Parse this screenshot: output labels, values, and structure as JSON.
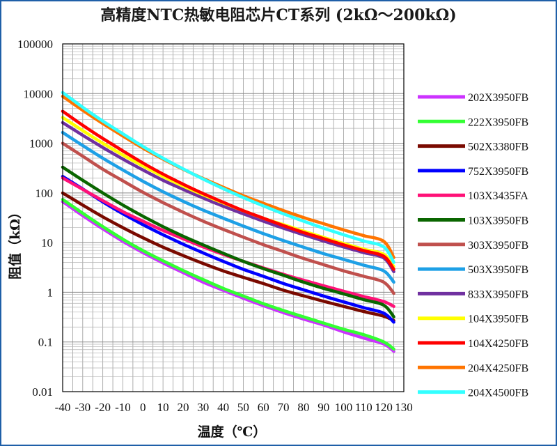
{
  "chart_data": {
    "type": "line",
    "title": "高精度NTC热敏电阻芯片CT系列 (2kΩ～200kΩ)",
    "xlabel": "温度（℃）",
    "ylabel": "阻值（kΩ）",
    "xlim": [
      -40,
      130
    ],
    "ylim": [
      0.01,
      100000
    ],
    "yscale": "log",
    "grid": true,
    "legend_position": "right",
    "x_ticks": [
      "-40",
      "-30",
      "-20",
      "-10",
      "0",
      "10",
      "20",
      "30",
      "40",
      "50",
      "60",
      "70",
      "80",
      "90",
      "100",
      "110",
      "120",
      "130"
    ],
    "y_ticks": [
      "0.01",
      "0.1",
      "1",
      "10",
      "100",
      "1000",
      "10000",
      "100000"
    ],
    "x": [
      -40,
      -30,
      -20,
      -10,
      0,
      10,
      20,
      30,
      40,
      50,
      60,
      70,
      80,
      90,
      100,
      110,
      120,
      125
    ],
    "series": [
      {
        "name": "202X3950FB",
        "color": "#cc33ff",
        "values": [
          67,
          35,
          19,
          10.6,
          6.3,
          3.9,
          2.5,
          1.6,
          1.1,
          0.76,
          0.54,
          0.39,
          0.29,
          0.22,
          0.16,
          0.12,
          0.091,
          0.065
        ]
      },
      {
        "name": "222X3950FB",
        "color": "#33ff33",
        "values": [
          74,
          39,
          21,
          11.7,
          6.9,
          4.3,
          2.75,
          1.8,
          1.2,
          0.84,
          0.59,
          0.43,
          0.32,
          0.24,
          0.18,
          0.14,
          0.1,
          0.072
        ]
      },
      {
        "name": "502X3380FB",
        "color": "#7a0a00",
        "values": [
          100,
          57,
          33,
          20,
          12.5,
          8.1,
          5.5,
          3.8,
          2.7,
          2.0,
          1.5,
          1.1,
          0.85,
          0.66,
          0.52,
          0.41,
          0.33,
          0.27
        ]
      },
      {
        "name": "752X3950FB",
        "color": "#0000ff",
        "values": [
          215,
          120,
          66,
          38,
          23,
          14.4,
          9.3,
          6.2,
          4.2,
          2.9,
          2.1,
          1.5,
          1.12,
          0.84,
          0.64,
          0.49,
          0.38,
          0.25
        ]
      },
      {
        "name": "103X3435FA",
        "color": "#ff1177",
        "values": [
          200,
          118,
          70,
          42,
          27,
          17.6,
          12,
          8.2,
          5.8,
          4.2,
          3.1,
          2.3,
          1.75,
          1.35,
          1.05,
          0.82,
          0.65,
          0.52
        ]
      },
      {
        "name": "103X3950FB",
        "color": "#0a6600",
        "values": [
          330,
          180,
          100,
          57,
          34,
          21,
          13.5,
          9.0,
          6.1,
          4.2,
          3.0,
          2.2,
          1.6,
          1.2,
          0.93,
          0.71,
          0.55,
          0.32
        ]
      },
      {
        "name": "303X3950FB",
        "color": "#c0504d",
        "values": [
          1000,
          550,
          300,
          175,
          103,
          64,
          41,
          27,
          18.5,
          12.9,
          9.1,
          6.6,
          4.8,
          3.6,
          2.7,
          2.1,
          1.6,
          0.95
        ]
      },
      {
        "name": "503X3950FB",
        "color": "#1ea0e6",
        "values": [
          1650,
          900,
          500,
          290,
          172,
          106,
          68,
          45,
          31,
          21.5,
          15.2,
          11,
          8.1,
          6.0,
          4.6,
          3.5,
          2.7,
          1.6
        ]
      },
      {
        "name": "833X3950FB",
        "color": "#7030a0",
        "values": [
          2600,
          1450,
          820,
          480,
          290,
          180,
          118,
          79,
          54,
          38,
          27,
          19.5,
          14.4,
          10.8,
          8.2,
          6.3,
          4.9,
          2.6
        ]
      },
      {
        "name": "104X3950FB",
        "color": "#ffff00",
        "values": [
          3300,
          1800,
          1000,
          580,
          350,
          215,
          138,
          92,
          63,
          44,
          31,
          23,
          17,
          12.7,
          9.6,
          7.4,
          5.8,
          3.3
        ]
      },
      {
        "name": "104X4250FB",
        "color": "#ff0000",
        "values": [
          4400,
          2300,
          1250,
          700,
          400,
          240,
          150,
          97,
          65,
          44,
          31,
          22,
          16,
          12,
          9,
          6.9,
          5.3,
          2.9
        ]
      },
      {
        "name": "204X4250FB",
        "color": "#ff7400",
        "values": [
          8800,
          4600,
          2500,
          1400,
          800,
          480,
          300,
          195,
          130,
          88,
          62,
          44,
          32,
          24,
          18,
          13.8,
          10.6,
          5.0
        ]
      },
      {
        "name": "204X4500FB",
        "color": "#33ffff",
        "values": [
          10500,
          5300,
          2800,
          1550,
          860,
          500,
          305,
          190,
          122,
          81,
          55,
          38,
          27,
          19.5,
          14.4,
          10.8,
          8.2,
          4.0
        ]
      }
    ]
  }
}
